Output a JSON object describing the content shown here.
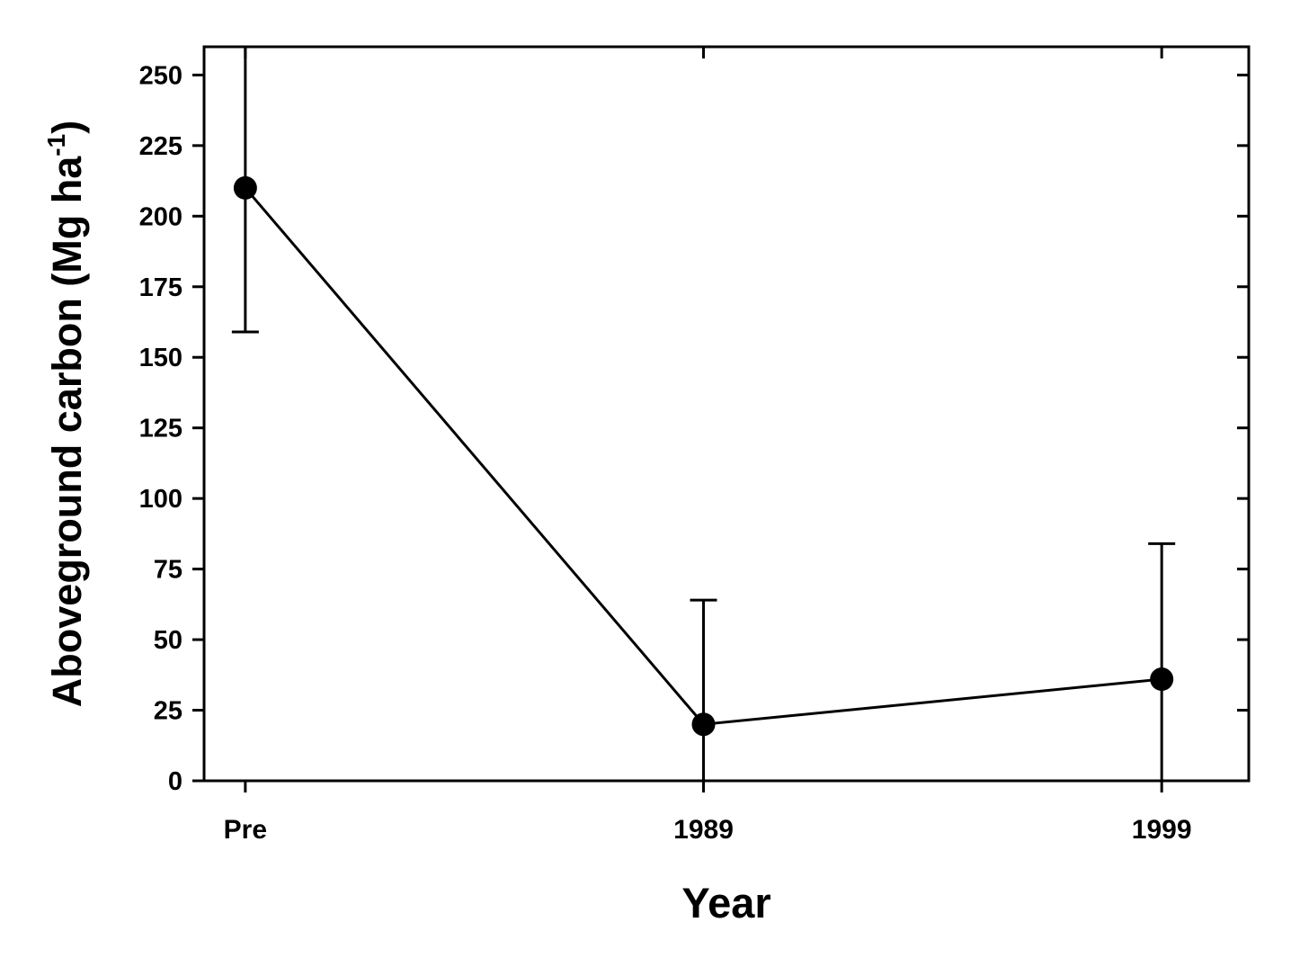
{
  "chart_data": {
    "type": "line",
    "title": "",
    "xlabel": "Year",
    "ylabel": {
      "text": "Aboveground carbon (Mg ha",
      "superscript": "-1",
      "close": ")"
    },
    "x_categories": [
      "Pre",
      "1989",
      "1999"
    ],
    "x_positions": [
      1979,
      1989,
      1999
    ],
    "xlim": [
      1978.1,
      2000.9
    ],
    "ylim": [
      0,
      260
    ],
    "y_ticks": [
      0,
      25,
      50,
      75,
      100,
      125,
      150,
      175,
      200,
      225,
      250
    ],
    "grid": false,
    "series": [
      {
        "color": "#000000",
        "marker": "filled-circle",
        "points": [
          {
            "label": "Pre",
            "x": 1979,
            "y": 210,
            "err_low": 159,
            "err_high": 260
          },
          {
            "label": "1989",
            "x": 1989,
            "y": 20,
            "err_low": 0,
            "err_high": 64
          },
          {
            "label": "1999",
            "x": 1999,
            "y": 36,
            "err_low": 0,
            "err_high": 84
          }
        ]
      }
    ]
  }
}
